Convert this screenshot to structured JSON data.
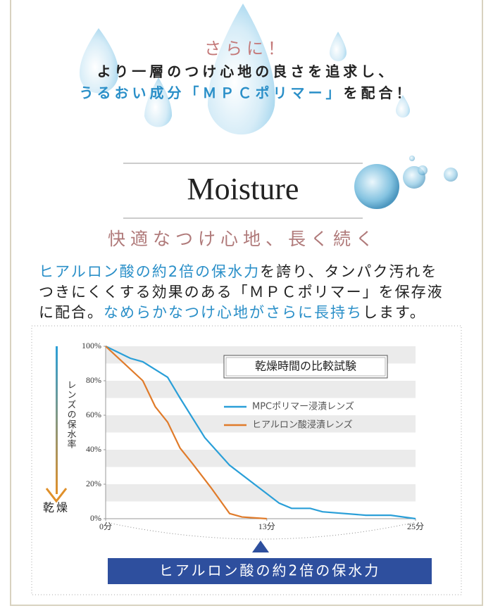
{
  "header": {
    "lead": "さらに！",
    "line1": "より一層のつけ心地の良さを追求し、",
    "line2_highlight": "うるおい成分「ＭＰＣポリマー」",
    "line2_rest": "を配合！"
  },
  "section": {
    "title": "Moisture",
    "subtitle": "快適なつけ心地、長く続く",
    "body": [
      [
        "ヒアルロン酸の約2倍の保水力",
        "を誇り、タンパク汚れを"
      ],
      [
        "つきにくくする効果のある「ＭＰＣポリマー」を保存液"
      ],
      [
        "に配合。",
        "なめらかなつけ心地がさらに長持ち",
        "します。"
      ]
    ]
  },
  "chart": {
    "type": "line",
    "title": "乾燥時間の比較試験",
    "y_label": "レンズの保水率",
    "y_end_label": "乾燥",
    "series": [
      {
        "name": "MPCポリマー浸漬レンズ",
        "color": "#2a9fd8",
        "x": [
          0,
          2,
          3,
          5,
          6,
          8,
          10,
          12,
          14,
          15,
          16.5,
          17.5,
          21,
          23,
          25
        ],
        "values": [
          100,
          93,
          91,
          82,
          70,
          47,
          31,
          20,
          9,
          6,
          6,
          4,
          2,
          2,
          0
        ]
      },
      {
        "name": "ヒアルロン酸浸漬レンズ",
        "color": "#e07b2a",
        "x": [
          0,
          3,
          4,
          5,
          6,
          7,
          8.5,
          10,
          11,
          13
        ],
        "values": [
          100,
          80,
          65,
          56,
          41,
          32,
          18,
          3,
          1,
          0
        ]
      }
    ],
    "xlim": [
      0,
      25
    ],
    "xticks": [
      {
        "value": 0,
        "label": "0分"
      },
      {
        "value": 13,
        "label": "13分"
      },
      {
        "value": 25,
        "label": "25分"
      }
    ],
    "ylim": [
      0,
      100
    ],
    "yticks": [
      {
        "value": 0,
        "label": "0%"
      },
      {
        "value": 20,
        "label": "20%"
      },
      {
        "value": 40,
        "label": "40%"
      },
      {
        "value": 60,
        "label": "60%"
      },
      {
        "value": 80,
        "label": "80%"
      },
      {
        "value": 100,
        "label": "100%"
      }
    ]
  },
  "banner": "ヒアルロン酸の約2倍の保水力"
}
